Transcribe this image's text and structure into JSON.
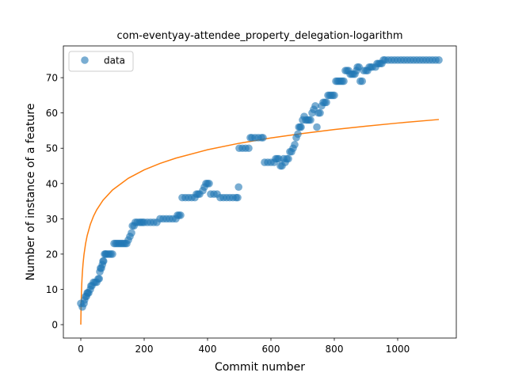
{
  "chart_data": {
    "type": "scatter",
    "title": "com-eventyay-attendee_property_delegation-logarithm",
    "xlabel": "Commit number",
    "ylabel": "Number of instance of a feature",
    "xlim": [
      -55,
      1185
    ],
    "ylim": [
      -3.8,
      79
    ],
    "xticks": [
      0,
      200,
      400,
      600,
      800,
      1000
    ],
    "yticks": [
      0,
      10,
      20,
      30,
      40,
      50,
      60,
      70
    ],
    "legend": {
      "placement": "top-left",
      "entries": [
        "data"
      ]
    },
    "colors": {
      "scatter": "#1f77b4",
      "fit": "#ff7f0e"
    },
    "series": [
      {
        "name": "data",
        "kind": "scatter",
        "points": [
          [
            0,
            6
          ],
          [
            5,
            5
          ],
          [
            10,
            6
          ],
          [
            12,
            7
          ],
          [
            15,
            8
          ],
          [
            18,
            8
          ],
          [
            20,
            9
          ],
          [
            22,
            9
          ],
          [
            25,
            9
          ],
          [
            30,
            10
          ],
          [
            32,
            11
          ],
          [
            35,
            11
          ],
          [
            40,
            12
          ],
          [
            45,
            12
          ],
          [
            50,
            12
          ],
          [
            55,
            13
          ],
          [
            58,
            13
          ],
          [
            60,
            15
          ],
          [
            62,
            16
          ],
          [
            65,
            16
          ],
          [
            68,
            17
          ],
          [
            70,
            18
          ],
          [
            72,
            18
          ],
          [
            75,
            20
          ],
          [
            78,
            20
          ],
          [
            80,
            20
          ],
          [
            85,
            20
          ],
          [
            90,
            20
          ],
          [
            95,
            20
          ],
          [
            100,
            20
          ],
          [
            105,
            23
          ],
          [
            110,
            23
          ],
          [
            115,
            23
          ],
          [
            120,
            23
          ],
          [
            125,
            23
          ],
          [
            130,
            23
          ],
          [
            135,
            23
          ],
          [
            140,
            23
          ],
          [
            145,
            23
          ],
          [
            150,
            24
          ],
          [
            155,
            25
          ],
          [
            160,
            26
          ],
          [
            163,
            28
          ],
          [
            168,
            28
          ],
          [
            172,
            29
          ],
          [
            178,
            29
          ],
          [
            185,
            29
          ],
          [
            190,
            29
          ],
          [
            195,
            29
          ],
          [
            200,
            29
          ],
          [
            210,
            29
          ],
          [
            220,
            29
          ],
          [
            230,
            29
          ],
          [
            240,
            29
          ],
          [
            250,
            30
          ],
          [
            260,
            30
          ],
          [
            270,
            30
          ],
          [
            280,
            30
          ],
          [
            290,
            30
          ],
          [
            300,
            30
          ],
          [
            305,
            31
          ],
          [
            310,
            31
          ],
          [
            315,
            31
          ],
          [
            320,
            36
          ],
          [
            330,
            36
          ],
          [
            340,
            36
          ],
          [
            350,
            36
          ],
          [
            360,
            36
          ],
          [
            365,
            37
          ],
          [
            370,
            37
          ],
          [
            375,
            37
          ],
          [
            385,
            38
          ],
          [
            390,
            39
          ],
          [
            395,
            40
          ],
          [
            400,
            40
          ],
          [
            405,
            40
          ],
          [
            410,
            37
          ],
          [
            420,
            37
          ],
          [
            430,
            37
          ],
          [
            440,
            36
          ],
          [
            450,
            36
          ],
          [
            460,
            36
          ],
          [
            470,
            36
          ],
          [
            480,
            36
          ],
          [
            490,
            36
          ],
          [
            495,
            36
          ],
          [
            498,
            39
          ],
          [
            500,
            50
          ],
          [
            510,
            50
          ],
          [
            520,
            50
          ],
          [
            530,
            50
          ],
          [
            535,
            53
          ],
          [
            540,
            53
          ],
          [
            550,
            53
          ],
          [
            560,
            53
          ],
          [
            570,
            53
          ],
          [
            575,
            53
          ],
          [
            580,
            46
          ],
          [
            590,
            46
          ],
          [
            600,
            46
          ],
          [
            610,
            46
          ],
          [
            615,
            47
          ],
          [
            620,
            47
          ],
          [
            625,
            47
          ],
          [
            630,
            45
          ],
          [
            635,
            45
          ],
          [
            640,
            47
          ],
          [
            645,
            46
          ],
          [
            650,
            47
          ],
          [
            655,
            47
          ],
          [
            660,
            49
          ],
          [
            665,
            49
          ],
          [
            670,
            50
          ],
          [
            675,
            51
          ],
          [
            680,
            53
          ],
          [
            685,
            54
          ],
          [
            688,
            56
          ],
          [
            692,
            56
          ],
          [
            695,
            56
          ],
          [
            700,
            58
          ],
          [
            705,
            59
          ],
          [
            710,
            58
          ],
          [
            715,
            58
          ],
          [
            720,
            58
          ],
          [
            725,
            58
          ],
          [
            730,
            60
          ],
          [
            735,
            61
          ],
          [
            740,
            62
          ],
          [
            745,
            56
          ],
          [
            750,
            60
          ],
          [
            755,
            60
          ],
          [
            760,
            62
          ],
          [
            765,
            63
          ],
          [
            770,
            63
          ],
          [
            775,
            63
          ],
          [
            780,
            65
          ],
          [
            785,
            65
          ],
          [
            790,
            65
          ],
          [
            795,
            65
          ],
          [
            800,
            65
          ],
          [
            805,
            69
          ],
          [
            810,
            69
          ],
          [
            815,
            69
          ],
          [
            820,
            69
          ],
          [
            825,
            69
          ],
          [
            830,
            69
          ],
          [
            835,
            72
          ],
          [
            840,
            72
          ],
          [
            845,
            72
          ],
          [
            850,
            71
          ],
          [
            855,
            71
          ],
          [
            860,
            71
          ],
          [
            865,
            71
          ],
          [
            870,
            72
          ],
          [
            873,
            73
          ],
          [
            878,
            73
          ],
          [
            882,
            69
          ],
          [
            888,
            69
          ],
          [
            893,
            72
          ],
          [
            900,
            72
          ],
          [
            905,
            72
          ],
          [
            910,
            73
          ],
          [
            915,
            73
          ],
          [
            920,
            73
          ],
          [
            930,
            73
          ],
          [
            935,
            74
          ],
          [
            940,
            74
          ],
          [
            945,
            74
          ],
          [
            950,
            74
          ],
          [
            955,
            75
          ],
          [
            960,
            75
          ],
          [
            970,
            75
          ],
          [
            980,
            75
          ],
          [
            990,
            75
          ],
          [
            1000,
            75
          ],
          [
            1010,
            75
          ],
          [
            1020,
            75
          ],
          [
            1030,
            75
          ],
          [
            1040,
            75
          ],
          [
            1050,
            75
          ],
          [
            1060,
            75
          ],
          [
            1070,
            75
          ],
          [
            1080,
            75
          ],
          [
            1090,
            75
          ],
          [
            1100,
            75
          ],
          [
            1110,
            75
          ],
          [
            1120,
            75
          ],
          [
            1130,
            75
          ]
        ]
      },
      {
        "kind": "line",
        "equation": "y = 8.27 * ln(x + 1)",
        "x": [
          0,
          1,
          2,
          3,
          4,
          5,
          7,
          10,
          15,
          20,
          30,
          40,
          50,
          70,
          100,
          150,
          200,
          250,
          300,
          400,
          500,
          600,
          700,
          800,
          900,
          1000,
          1130
        ]
      }
    ]
  }
}
